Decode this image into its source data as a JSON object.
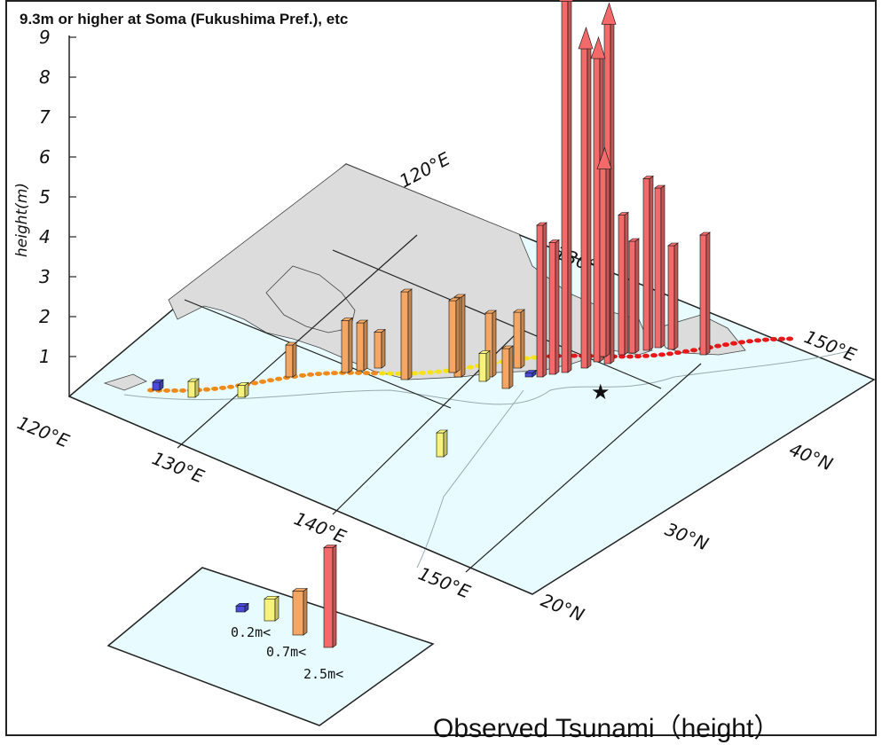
{
  "headline": "9.3m or higher at Soma (Fukushima Pref.), etc",
  "caption": "Observed Tsunami（height）",
  "chart_data": {
    "type": "bar",
    "ylabel": "height(m)",
    "yticks": [
      "1",
      "2",
      "3",
      "4",
      "5",
      "6",
      "7",
      "8",
      "9"
    ],
    "ylim": [
      0,
      9
    ],
    "map_labels": {
      "longitude": [
        "120°E",
        "130°E",
        "140°E",
        "150°E"
      ],
      "latitude": [
        "20°N",
        "30°N",
        "40°N"
      ],
      "back_lon": [
        "120°E",
        "130°E",
        "150°E"
      ]
    },
    "colors": {
      "over_2_5m": "#f26a6a",
      "over_0_7m": "#f4a662",
      "over_0_2m": "#f7f27a",
      "under_0_2m": "#4b4bd9",
      "sea": "#e8fcff",
      "land": "#dcdcdc"
    },
    "epicenter_icon": "star-icon",
    "bars_heights_m": [
      9.3,
      8.5,
      8.0,
      7.6,
      4.7,
      4.3,
      4.0,
      3.8,
      3.5,
      3.3,
      3.0,
      2.8,
      2.6,
      2.2,
      2.0,
      1.8,
      1.6,
      1.4,
      1.3,
      1.2,
      1.0,
      0.9,
      0.8,
      0.7,
      0.6,
      0.4,
      0.3,
      0.2,
      0.1
    ],
    "legend": [
      {
        "label": "",
        "color": "#4b4bd9"
      },
      {
        "label": "0.2m<",
        "color": "#f7f27a"
      },
      {
        "label": "0.7m<",
        "color": "#f4a662"
      },
      {
        "label": "2.5m<",
        "color": "#f26a6a"
      }
    ]
  }
}
